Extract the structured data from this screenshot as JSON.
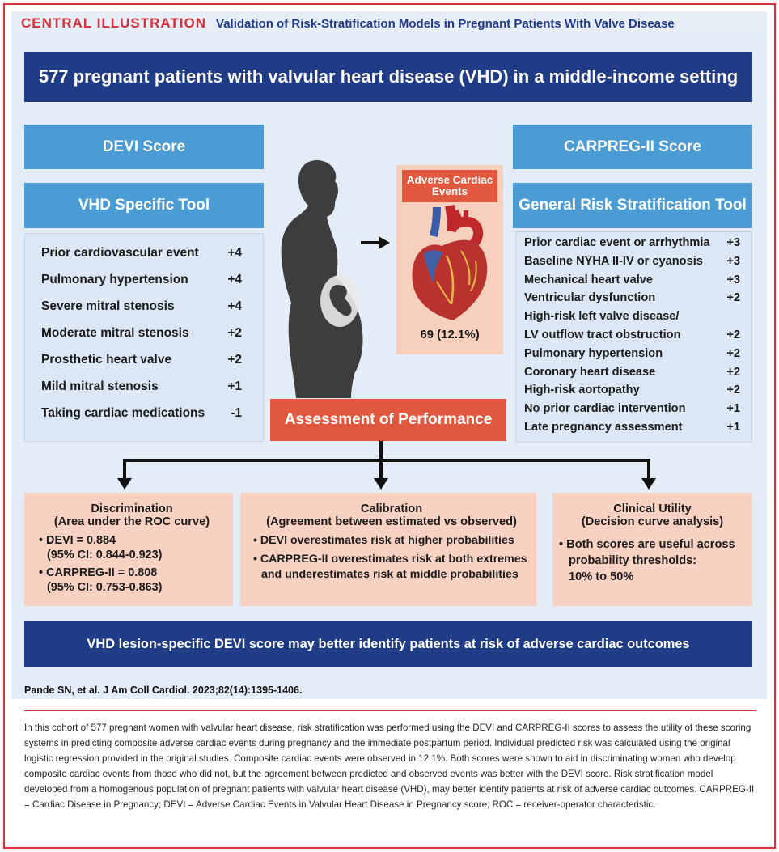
{
  "header": {
    "label": "CENTRAL ILLUSTRATION",
    "title": "Validation of Risk-Stratification Models in Pregnant Patients With Valve Disease"
  },
  "banner": "577 pregnant patients with valvular heart disease (VHD) in a middle-income setting",
  "devi": {
    "title": "DEVI Score",
    "subtitle": "VHD Specific Tool",
    "items": [
      {
        "label": "Prior cardiovascular event",
        "score": "+4"
      },
      {
        "label": "Pulmonary hypertension",
        "score": "+4"
      },
      {
        "label": "Severe mitral stenosis",
        "score": "+4"
      },
      {
        "label": "Moderate mitral stenosis",
        "score": "+2"
      },
      {
        "label": "Prosthetic heart valve",
        "score": "+2"
      },
      {
        "label": "Mild mitral stenosis",
        "score": "+1"
      },
      {
        "label": "Taking cardiac medications",
        "score": "-1"
      }
    ]
  },
  "carpreg": {
    "title": "CARPREG-II Score",
    "subtitle": "General Risk Stratification Tool",
    "items": [
      {
        "label": "Prior cardiac event or arrhythmia",
        "score": "+3"
      },
      {
        "label": "Baseline NYHA II-IV or cyanosis",
        "score": "+3"
      },
      {
        "label": "Mechanical heart valve",
        "score": "+3"
      },
      {
        "label": "Ventricular dysfunction",
        "score": "+2"
      },
      {
        "label": "High-risk left valve disease/",
        "score": ""
      },
      {
        "label": "LV outflow tract obstruction",
        "score": "+2"
      },
      {
        "label": "Pulmonary hypertension",
        "score": "+2"
      },
      {
        "label": "Coronary heart disease",
        "score": "+2"
      },
      {
        "label": "High-risk aortopathy",
        "score": "+2"
      },
      {
        "label": "No prior cardiac intervention",
        "score": "+1"
      },
      {
        "label": "Late pregnancy assessment",
        "score": "+1"
      }
    ]
  },
  "events": {
    "title": "Adverse Cardiac Events",
    "count": "69 (12.1%)"
  },
  "assessment": "Assessment of Performance",
  "discrimination": {
    "title": "Discrimination",
    "subtitle": "(Area under the ROC curve)",
    "b1a": "DEVI = 0.884",
    "b1b": "(95% CI: 0.844-0.923)",
    "b2a": "CARPREG-II = 0.808",
    "b2b": "(95% CI: 0.753-0.863)"
  },
  "calibration": {
    "title": "Calibration",
    "subtitle": "(Agreement between estimated vs observed)",
    "b1": "DEVI overestimates risk at higher probabilities",
    "b2a": "CARPREG-II overestimates risk at both extremes",
    "b2b": "and underestimates risk at middle probabilities"
  },
  "utility": {
    "title": "Clinical Utility",
    "subtitle": "(Decision curve analysis)",
    "b1a": "Both scores are useful across",
    "b1b": "probability thresholds:",
    "b1c": "10% to 50%"
  },
  "conclusion": "VHD lesion-specific DEVI score may better identify patients at risk of adverse cardiac outcomes",
  "citation": "Pande SN, et al. J Am Coll Cardiol. 2023;82(14):1395-1406.",
  "legend": "In this cohort of 577 pregnant women with valvular heart disease, risk stratification was performed using the DEVI and CARPREG-II scores to assess the utility of these scoring systems in predicting composite adverse cardiac events during pregnancy and the immediate postpartum period. Individual predicted risk was calculated using the original logistic regression provided in the original studies. Composite cardiac events were observed in 12.1%. Both scores were shown to aid in discriminating women who develop composite cardiac events from those who did not, but the agreement between predicted and observed events was better with the DEVI score. Risk stratification model developed from a homogenous population of pregnant patients with valvular heart disease (VHD), may better identify patients at risk of adverse cardiac outcomes. CARPREG-II = Cardiac Disease in Pregnancy; DEVI = Adverse Cardiac Events in Valvular Heart Disease in Pregnancy score; ROC = receiver-operator characteristic."
}
